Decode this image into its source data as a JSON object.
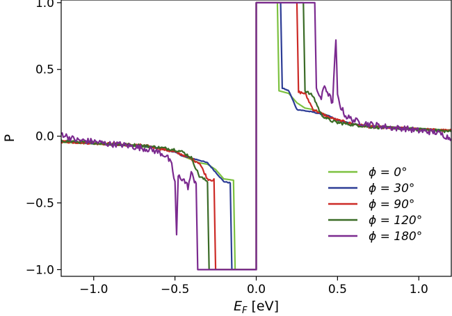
{
  "chart_data": {
    "type": "line",
    "xlabel_main": "E",
    "xlabel_sub": "F",
    "xlabel_unit": " [eV]",
    "ylabel": "P",
    "xlim": [
      -1.2,
      1.2
    ],
    "ylim": [
      -1.05,
      1.02
    ],
    "x_ticks": [
      -1.0,
      -0.5,
      0.0,
      0.5,
      1.0
    ],
    "x_tick_labels": [
      "−1.0",
      "−0.5",
      "0.0",
      "0.5",
      "1.0"
    ],
    "y_ticks": [
      -1.0,
      -0.5,
      0.0,
      0.5,
      1.0
    ],
    "y_tick_labels": [
      "−1.0",
      "−0.5",
      "0.0",
      "0.5",
      "1.0"
    ],
    "legend_location": "lower-right",
    "series": [
      {
        "name": "ϕ = 0°",
        "color": "#7cc13f",
        "points": [
          [
            -1.2,
            -0.045
          ],
          [
            -0.75,
            -0.075
          ],
          [
            -0.6,
            -0.09
          ],
          [
            -0.55,
            -0.1
          ],
          [
            -0.5,
            -0.11
          ],
          [
            -0.45,
            -0.15
          ],
          [
            -0.35,
            -0.2
          ],
          [
            -0.3,
            -0.21
          ],
          [
            -0.25,
            -0.25
          ],
          [
            -0.2,
            -0.32
          ],
          [
            -0.14,
            -0.33
          ],
          [
            -0.13,
            -1.0
          ],
          [
            0.0,
            -1.0
          ],
          [
            0.0,
            1.0
          ],
          [
            0.13,
            1.0
          ],
          [
            0.14,
            0.34
          ],
          [
            0.2,
            0.32
          ],
          [
            0.25,
            0.25
          ],
          [
            0.3,
            0.21
          ],
          [
            0.35,
            0.2
          ],
          [
            0.45,
            0.15
          ],
          [
            0.5,
            0.11
          ],
          [
            0.6,
            0.09
          ],
          [
            0.75,
            0.075
          ],
          [
            1.2,
            0.045
          ]
        ]
      },
      {
        "name": "ϕ = 30°",
        "color": "#2c3c95",
        "points": [
          [
            -1.2,
            -0.04
          ],
          [
            -0.7,
            -0.075
          ],
          [
            -0.6,
            -0.09
          ],
          [
            -0.5,
            -0.12
          ],
          [
            -0.45,
            -0.15
          ],
          [
            -0.35,
            -0.18
          ],
          [
            -0.3,
            -0.2
          ],
          [
            -0.2,
            -0.34
          ],
          [
            -0.16,
            -0.35
          ],
          [
            -0.15,
            -1.0
          ],
          [
            0.0,
            -1.0
          ],
          [
            0.0,
            1.0
          ],
          [
            0.15,
            1.0
          ],
          [
            0.16,
            0.36
          ],
          [
            0.2,
            0.34
          ],
          [
            0.25,
            0.2
          ],
          [
            0.35,
            0.18
          ],
          [
            0.45,
            0.15
          ],
          [
            0.5,
            0.12
          ],
          [
            0.6,
            0.09
          ],
          [
            0.7,
            0.075
          ],
          [
            1.2,
            0.04
          ]
        ]
      },
      {
        "name": "ϕ = 90°",
        "color": "#cc2a26",
        "points": [
          [
            -1.2,
            -0.04
          ],
          [
            -0.7,
            -0.07
          ],
          [
            -0.6,
            -0.09
          ],
          [
            -0.5,
            -0.12
          ],
          [
            -0.45,
            -0.14
          ],
          [
            -0.4,
            -0.17
          ],
          [
            -0.35,
            -0.2
          ],
          [
            -0.3,
            -0.32
          ],
          [
            -0.26,
            -0.33
          ],
          [
            -0.25,
            -1.0
          ],
          [
            0.0,
            -1.0
          ],
          [
            0.0,
            1.0
          ],
          [
            0.25,
            1.0
          ],
          [
            0.26,
            0.33
          ],
          [
            0.3,
            0.32
          ],
          [
            0.35,
            0.2
          ],
          [
            0.4,
            0.17
          ],
          [
            0.45,
            0.14
          ],
          [
            0.5,
            0.12
          ],
          [
            0.6,
            0.09
          ],
          [
            0.7,
            0.07
          ],
          [
            1.2,
            0.04
          ]
        ]
      },
      {
        "name": "ϕ = 120°",
        "color": "#3a6b26",
        "points": [
          [
            -1.2,
            -0.035
          ],
          [
            -0.7,
            -0.07
          ],
          [
            -0.6,
            -0.085
          ],
          [
            -0.5,
            -0.1
          ],
          [
            -0.45,
            -0.12
          ],
          [
            -0.4,
            -0.16
          ],
          [
            -0.35,
            -0.3
          ],
          [
            -0.3,
            -0.34
          ],
          [
            -0.29,
            -1.0
          ],
          [
            0.0,
            -1.0
          ],
          [
            0.0,
            1.0
          ],
          [
            0.29,
            1.0
          ],
          [
            0.3,
            0.34
          ],
          [
            0.35,
            0.3
          ],
          [
            0.4,
            0.16
          ],
          [
            0.45,
            0.12
          ],
          [
            0.5,
            0.1
          ],
          [
            0.6,
            0.085
          ],
          [
            0.7,
            0.07
          ],
          [
            1.2,
            0.035
          ]
        ]
      },
      {
        "name": "ϕ = 180°",
        "color": "#7b2a8f",
        "points": [
          [
            -1.2,
            0.02
          ],
          [
            -1.15,
            -0.01
          ],
          [
            -1.1,
            -0.03
          ],
          [
            -1.0,
            -0.04
          ],
          [
            -0.95,
            -0.05
          ],
          [
            -0.9,
            -0.06
          ],
          [
            -0.85,
            -0.06
          ],
          [
            -0.8,
            -0.07
          ],
          [
            -0.7,
            -0.09
          ],
          [
            -0.65,
            -0.1
          ],
          [
            -0.6,
            -0.12
          ],
          [
            -0.55,
            -0.15
          ],
          [
            -0.52,
            -0.22
          ],
          [
            -0.5,
            -0.35
          ],
          [
            -0.49,
            -0.74
          ],
          [
            -0.48,
            -0.3
          ],
          [
            -0.45,
            -0.32
          ],
          [
            -0.42,
            -0.38
          ],
          [
            -0.4,
            -0.28
          ],
          [
            -0.38,
            -0.33
          ],
          [
            -0.37,
            -0.34
          ],
          [
            -0.36,
            -1.0
          ],
          [
            0.0,
            -1.0
          ],
          [
            0.0,
            1.0
          ],
          [
            0.36,
            1.0
          ],
          [
            0.37,
            0.34
          ],
          [
            0.38,
            0.33
          ],
          [
            0.4,
            0.28
          ],
          [
            0.42,
            0.38
          ],
          [
            0.45,
            0.3
          ],
          [
            0.47,
            0.25
          ],
          [
            0.49,
            0.73
          ],
          [
            0.5,
            0.3
          ],
          [
            0.52,
            0.22
          ],
          [
            0.55,
            0.15
          ],
          [
            0.6,
            0.12
          ],
          [
            0.65,
            0.1
          ],
          [
            0.7,
            0.09
          ],
          [
            0.8,
            0.07
          ],
          [
            0.85,
            0.06
          ],
          [
            0.9,
            0.06
          ],
          [
            0.95,
            0.05
          ],
          [
            1.0,
            0.04
          ],
          [
            1.1,
            0.03
          ],
          [
            1.15,
            0.01
          ],
          [
            1.2,
            -0.02
          ]
        ]
      }
    ]
  }
}
